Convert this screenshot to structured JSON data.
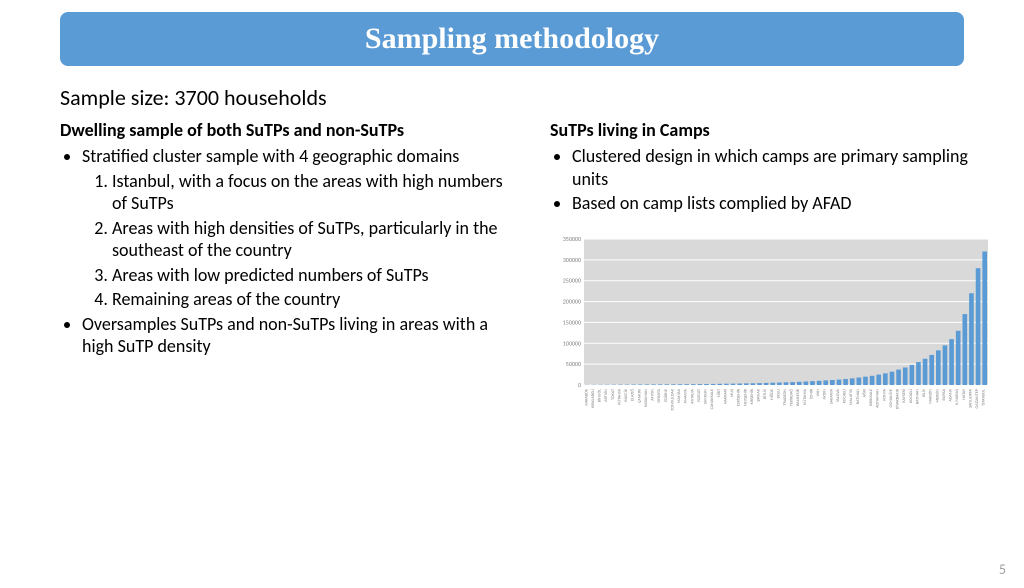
{
  "title": "Sampling methodology",
  "subtitle": "Sample size: 3700 households",
  "left": {
    "heading": "Dwelling sample of both SuTPs and non-SuTPs",
    "bullet1": "Stratified cluster sample with 4 geographic domains",
    "num1": "Istanbul, with a focus on the areas with high numbers of SuTPs",
    "num2": "Areas with high densities of SuTPs, particularly in the southeast of the country",
    "num3": "Areas with low predicted numbers of SuTPs",
    "num4": "Remaining areas of the country",
    "bullet2": "Oversamples SuTPs and non-SuTPs living in areas with a high SuTP density"
  },
  "right": {
    "heading": "SuTPs living in Camps",
    "b1": "Clustered design in which camps are primary sampling units",
    "b2": "Based on camp lists complied by AFAD"
  },
  "chart": {
    "type": "bar",
    "background_color": "#d9d9d9",
    "grid_color": "#ffffff",
    "bar_color": "#5b9bd5",
    "axis_label_color": "#808080",
    "ymax": 350000,
    "ytick_step": 50000,
    "yticks": [
      "0",
      "50000",
      "100000",
      "150000",
      "200000",
      "250000",
      "300000",
      "350000"
    ],
    "categories": [
      "KARABÜK",
      "KIRKLARELİ",
      "BİNGÖL",
      "ARTVİN",
      "TOKAT",
      "KÜTAHYA",
      "BİLECİK",
      "ELAZIĞ",
      "ÇANKIRI",
      "KARAMAN",
      "AFYON",
      "ISPARTA",
      "EDİRNE",
      "ZONGULDAK",
      "MANİSA",
      "AMASYA",
      "ANTALYA",
      "YOZGAT",
      "SAMSUN",
      "ÇANAKKALE",
      "SİİRT",
      "HAKKARİ",
      "MUŞ",
      "ESKİŞEHİR",
      "NEVŞEHİR",
      "KIRŞEHİR",
      "ŞIRNAK",
      "BİTLİS",
      "NİĞDE",
      "BOLU",
      "TRABZON",
      "TEKİRDAĞ",
      "BALIKESİR",
      "KÜTAHYA",
      "İZMİR",
      "VAN",
      "AYDIN",
      "SAKARYA",
      "YALOVA",
      "KOCAELİ",
      "MALATYA",
      "BATMAN",
      "AĞRI",
      "KIRIKKALE",
      "ADIYAMAN",
      "KONYA",
      "OSMANİYE",
      "DİYARBAKIR",
      "KAYSERİ",
      "KOCAELİ",
      "BATMAN",
      "KİLİS",
      "MARDİN",
      "MERSİN",
      "BURSA",
      "ADANA",
      "K.MARAŞ",
      "HATAY",
      "ŞANLIURFA",
      "GAZİANTEP",
      "İSTANBUL"
    ],
    "values": [
      400,
      500,
      600,
      700,
      800,
      900,
      1000,
      1100,
      1200,
      1300,
      1400,
      1500,
      1600,
      1700,
      1800,
      1900,
      2000,
      2200,
      2400,
      2600,
      2800,
      3000,
      3300,
      3600,
      3900,
      4200,
      4600,
      5000,
      5500,
      6000,
      6500,
      7000,
      7700,
      8400,
      9200,
      10000,
      11000,
      12000,
      13000,
      14500,
      16000,
      18000,
      20000,
      22000,
      25000,
      28000,
      32000,
      37000,
      42000,
      48000,
      55000,
      63000,
      72000,
      83000,
      95000,
      110000,
      130000,
      170000,
      220000,
      280000,
      320000
    ]
  },
  "page_number": "5"
}
